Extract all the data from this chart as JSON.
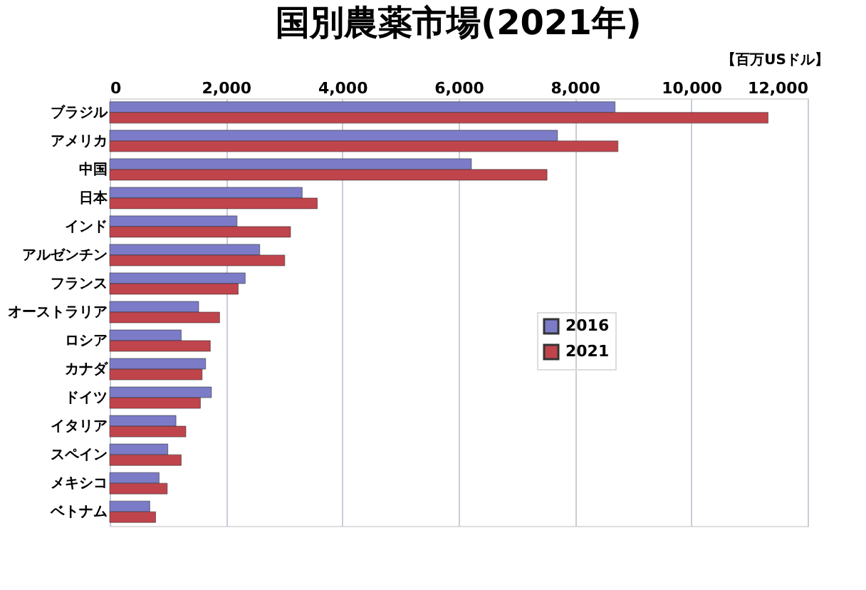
{
  "chart_data": {
    "type": "bar",
    "orientation": "horizontal",
    "title": "国別農薬市場(2021年)",
    "annotations": [
      "【百万USドル】"
    ],
    "categories": [
      "ブラジル",
      "アメリカ",
      "中国",
      "日本",
      "インド",
      "アルゼンチン",
      "フランス",
      "オーストラリア",
      "ロシア",
      "カナダ",
      "ドイツ",
      "イタリア",
      "スペイン",
      "メキシコ",
      "ベトナム"
    ],
    "series": [
      {
        "name": "2016",
        "color": "#7b7bc8",
        "values": [
          8690,
          7700,
          6220,
          3310,
          2190,
          2580,
          2330,
          1530,
          1230,
          1650,
          1750,
          1140,
          1000,
          850,
          690
        ]
      },
      {
        "name": "2021",
        "color": "#c0444c",
        "values": [
          11320,
          8740,
          7520,
          3570,
          3110,
          3010,
          2210,
          1890,
          1730,
          1590,
          1560,
          1310,
          1230,
          990,
          790
        ]
      }
    ],
    "xlim": [
      0,
      12000
    ],
    "xticks": [
      0,
      {
        "value": 2000,
        "label": "2,000"
      },
      {
        "value": 4000,
        "label": "4,000"
      },
      {
        "value": 6000,
        "label": "6,000"
      },
      {
        "value": 8000,
        "label": "8,000"
      },
      {
        "value": 10000,
        "label": "10,000"
      },
      {
        "value": 12000,
        "label": "12,000"
      }
    ],
    "grid": "x",
    "legend": "right"
  }
}
